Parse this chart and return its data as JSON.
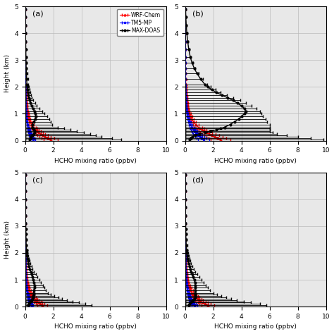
{
  "panels": [
    "(a)",
    "(b)",
    "(c)",
    "(d)"
  ],
  "heights": [
    0.05,
    0.1,
    0.15,
    0.2,
    0.25,
    0.3,
    0.35,
    0.4,
    0.45,
    0.5,
    0.6,
    0.7,
    0.8,
    0.9,
    1.0,
    1.1,
    1.2,
    1.3,
    1.4,
    1.5,
    1.6,
    1.7,
    1.8,
    1.9,
    2.0,
    2.1,
    2.3,
    2.5,
    2.7,
    2.9,
    3.1,
    3.4,
    3.7,
    4.0,
    4.3,
    4.6,
    4.9
  ],
  "max_doas": {
    "a": {
      "vals": [
        0.3,
        0.35,
        0.4,
        0.5,
        0.6,
        0.65,
        0.65,
        0.6,
        0.55,
        0.5,
        0.5,
        0.6,
        0.7,
        0.75,
        0.7,
        0.65,
        0.55,
        0.45,
        0.38,
        0.32,
        0.27,
        0.23,
        0.2,
        0.17,
        0.15,
        0.13,
        0.11,
        0.09,
        0.08,
        0.07,
        0.06,
        0.05,
        0.04,
        0.03,
        0.03,
        0.02,
        0.02
      ],
      "xerr_lo": [
        0.3,
        0.35,
        0.4,
        0.5,
        0.6,
        0.65,
        0.65,
        0.6,
        0.55,
        0.5,
        0.5,
        0.6,
        0.7,
        0.75,
        0.7,
        0.65,
        0.55,
        0.45,
        0.38,
        0.32,
        0.27,
        0.23,
        0.2,
        0.17,
        0.15,
        0.13,
        0.11,
        0.09,
        0.08,
        0.07,
        0.06,
        0.05,
        0.04,
        0.03,
        0.03,
        0.02,
        0.02
      ],
      "xerr_hi": [
        6.5,
        5.8,
        5.0,
        4.5,
        4.0,
        3.5,
        3.0,
        2.6,
        2.2,
        1.8,
        1.4,
        1.2,
        1.0,
        0.8,
        0.65,
        0.55,
        0.45,
        0.38,
        0.32,
        0.27,
        0.22,
        0.19,
        0.16,
        0.14,
        0.12,
        0.1,
        0.09,
        0.07,
        0.06,
        0.05,
        0.04,
        0.04,
        0.03,
        0.03,
        0.02,
        0.02,
        0.01
      ]
    },
    "b": {
      "vals": [
        0.3,
        0.4,
        0.5,
        0.7,
        1.0,
        1.4,
        1.8,
        2.2,
        2.5,
        2.8,
        3.2,
        3.5,
        3.8,
        4.0,
        4.2,
        4.3,
        4.2,
        4.0,
        3.7,
        3.4,
        3.0,
        2.6,
        2.2,
        1.9,
        1.6,
        1.4,
        1.1,
        0.85,
        0.65,
        0.5,
        0.38,
        0.27,
        0.19,
        0.13,
        0.09,
        0.06,
        0.04
      ],
      "xerr_lo": [
        0.3,
        0.4,
        0.5,
        0.7,
        1.0,
        1.4,
        1.8,
        2.2,
        2.5,
        2.8,
        3.2,
        3.5,
        3.8,
        4.0,
        4.2,
        4.3,
        4.2,
        4.0,
        3.7,
        3.4,
        3.0,
        2.6,
        2.2,
        1.9,
        1.6,
        1.4,
        1.1,
        0.85,
        0.65,
        0.5,
        0.38,
        0.27,
        0.19,
        0.13,
        0.09,
        0.06,
        0.04
      ],
      "xerr_hi": [
        9.5,
        8.5,
        7.5,
        6.5,
        5.5,
        4.8,
        4.2,
        3.8,
        3.5,
        3.2,
        2.8,
        2.3,
        1.9,
        1.5,
        1.2,
        1.0,
        0.85,
        0.7,
        0.6,
        0.5,
        0.4,
        0.35,
        0.3,
        0.25,
        0.22,
        0.19,
        0.15,
        0.12,
        0.09,
        0.07,
        0.05,
        0.04,
        0.03,
        0.02,
        0.02,
        0.01,
        0.01
      ]
    },
    "c": {
      "vals": [
        0.2,
        0.25,
        0.3,
        0.38,
        0.45,
        0.5,
        0.55,
        0.58,
        0.6,
        0.6,
        0.62,
        0.65,
        0.65,
        0.62,
        0.58,
        0.52,
        0.46,
        0.4,
        0.34,
        0.29,
        0.24,
        0.2,
        0.17,
        0.14,
        0.12,
        0.1,
        0.08,
        0.07,
        0.06,
        0.05,
        0.04,
        0.03,
        0.03,
        0.02,
        0.02,
        0.01,
        0.01
      ],
      "xerr_lo": [
        0.2,
        0.25,
        0.3,
        0.38,
        0.45,
        0.5,
        0.55,
        0.58,
        0.6,
        0.6,
        0.62,
        0.65,
        0.65,
        0.62,
        0.58,
        0.52,
        0.46,
        0.4,
        0.34,
        0.29,
        0.24,
        0.2,
        0.17,
        0.14,
        0.12,
        0.1,
        0.08,
        0.07,
        0.06,
        0.05,
        0.04,
        0.03,
        0.03,
        0.02,
        0.02,
        0.01,
        0.01
      ],
      "xerr_hi": [
        4.5,
        4.0,
        3.5,
        3.0,
        2.5,
        2.1,
        1.8,
        1.5,
        1.2,
        1.0,
        0.85,
        0.72,
        0.6,
        0.5,
        0.42,
        0.35,
        0.29,
        0.24,
        0.2,
        0.17,
        0.14,
        0.12,
        0.1,
        0.09,
        0.07,
        0.06,
        0.05,
        0.04,
        0.03,
        0.03,
        0.02,
        0.02,
        0.01,
        0.01,
        0.01,
        0.01,
        0.01
      ]
    },
    "d": {
      "vals": [
        0.25,
        0.3,
        0.38,
        0.48,
        0.58,
        0.65,
        0.7,
        0.72,
        0.72,
        0.7,
        0.7,
        0.72,
        0.72,
        0.7,
        0.65,
        0.58,
        0.5,
        0.43,
        0.37,
        0.31,
        0.26,
        0.22,
        0.18,
        0.15,
        0.13,
        0.11,
        0.09,
        0.07,
        0.06,
        0.05,
        0.04,
        0.03,
        0.03,
        0.02,
        0.02,
        0.01,
        0.01
      ],
      "xerr_lo": [
        0.25,
        0.3,
        0.38,
        0.48,
        0.58,
        0.65,
        0.7,
        0.72,
        0.72,
        0.7,
        0.7,
        0.72,
        0.72,
        0.7,
        0.65,
        0.58,
        0.5,
        0.43,
        0.37,
        0.31,
        0.26,
        0.22,
        0.18,
        0.15,
        0.13,
        0.11,
        0.09,
        0.07,
        0.06,
        0.05,
        0.04,
        0.03,
        0.03,
        0.02,
        0.02,
        0.01,
        0.01
      ],
      "xerr_hi": [
        5.5,
        5.0,
        4.3,
        3.7,
        3.1,
        2.6,
        2.2,
        1.85,
        1.55,
        1.3,
        1.05,
        0.88,
        0.73,
        0.6,
        0.5,
        0.42,
        0.35,
        0.29,
        0.24,
        0.2,
        0.17,
        0.14,
        0.12,
        0.1,
        0.08,
        0.07,
        0.06,
        0.05,
        0.04,
        0.03,
        0.03,
        0.02,
        0.02,
        0.01,
        0.01,
        0.01,
        0.01
      ]
    }
  },
  "wrf_chem": {
    "a": {
      "vals": [
        1.8,
        1.6,
        1.4,
        1.25,
        1.1,
        0.97,
        0.86,
        0.76,
        0.67,
        0.59,
        0.47,
        0.37,
        0.3,
        0.24,
        0.2,
        0.17,
        0.14,
        0.12,
        0.1,
        0.09,
        0.08,
        0.07,
        0.06,
        0.05,
        0.05,
        0.04,
        0.03,
        0.03,
        0.02,
        0.02,
        0.02,
        0.01,
        0.01,
        0.01,
        0.01,
        0.01,
        0.0
      ],
      "xerr": [
        0.5,
        0.45,
        0.4,
        0.36,
        0.32,
        0.28,
        0.25,
        0.22,
        0.19,
        0.17,
        0.14,
        0.11,
        0.09,
        0.07,
        0.06,
        0.05,
        0.04,
        0.04,
        0.03,
        0.03,
        0.02,
        0.02,
        0.02,
        0.01,
        0.01,
        0.01,
        0.01,
        0.01,
        0.01,
        0.01,
        0.01,
        0.01,
        0.0,
        0.0,
        0.0,
        0.0,
        0.0
      ]
    },
    "b": {
      "vals": [
        2.5,
        2.3,
        2.1,
        1.9,
        1.7,
        1.5,
        1.35,
        1.2,
        1.07,
        0.95,
        0.76,
        0.61,
        0.49,
        0.4,
        0.33,
        0.27,
        0.23,
        0.19,
        0.16,
        0.14,
        0.12,
        0.1,
        0.09,
        0.08,
        0.07,
        0.06,
        0.05,
        0.04,
        0.03,
        0.03,
        0.02,
        0.02,
        0.01,
        0.01,
        0.01,
        0.01,
        0.0
      ],
      "xerr": [
        0.7,
        0.63,
        0.57,
        0.51,
        0.46,
        0.41,
        0.37,
        0.33,
        0.29,
        0.26,
        0.2,
        0.16,
        0.13,
        0.1,
        0.08,
        0.07,
        0.06,
        0.05,
        0.04,
        0.04,
        0.03,
        0.03,
        0.02,
        0.02,
        0.02,
        0.01,
        0.01,
        0.01,
        0.01,
        0.01,
        0.01,
        0.01,
        0.0,
        0.0,
        0.0,
        0.0,
        0.0
      ]
    },
    "c": {
      "vals": [
        1.2,
        1.07,
        0.95,
        0.85,
        0.76,
        0.67,
        0.59,
        0.52,
        0.46,
        0.4,
        0.32,
        0.25,
        0.2,
        0.16,
        0.13,
        0.11,
        0.09,
        0.07,
        0.06,
        0.05,
        0.04,
        0.04,
        0.03,
        0.03,
        0.02,
        0.02,
        0.02,
        0.01,
        0.01,
        0.01,
        0.01,
        0.01,
        0.0,
        0.0,
        0.0,
        0.0,
        0.0
      ],
      "xerr": [
        0.35,
        0.31,
        0.28,
        0.25,
        0.22,
        0.19,
        0.17,
        0.15,
        0.13,
        0.12,
        0.09,
        0.07,
        0.06,
        0.05,
        0.04,
        0.03,
        0.03,
        0.02,
        0.02,
        0.02,
        0.01,
        0.01,
        0.01,
        0.01,
        0.01,
        0.01,
        0.01,
        0.0,
        0.0,
        0.0,
        0.0,
        0.0,
        0.0,
        0.0,
        0.0,
        0.0,
        0.0
      ]
    },
    "d": {
      "vals": [
        1.6,
        1.43,
        1.27,
        1.13,
        1.01,
        0.9,
        0.8,
        0.71,
        0.63,
        0.55,
        0.44,
        0.35,
        0.28,
        0.23,
        0.19,
        0.15,
        0.13,
        0.11,
        0.09,
        0.07,
        0.06,
        0.05,
        0.05,
        0.04,
        0.03,
        0.03,
        0.02,
        0.02,
        0.01,
        0.01,
        0.01,
        0.01,
        0.01,
        0.0,
        0.0,
        0.0,
        0.0
      ],
      "xerr": [
        0.45,
        0.4,
        0.36,
        0.32,
        0.28,
        0.25,
        0.22,
        0.2,
        0.17,
        0.15,
        0.12,
        0.1,
        0.08,
        0.06,
        0.05,
        0.04,
        0.04,
        0.03,
        0.02,
        0.02,
        0.02,
        0.01,
        0.01,
        0.01,
        0.01,
        0.01,
        0.01,
        0.01,
        0.0,
        0.0,
        0.0,
        0.0,
        0.0,
        0.0,
        0.0,
        0.0,
        0.0
      ]
    }
  },
  "tm5_mp": {
    "a": {
      "vals": [
        0.55,
        0.5,
        0.45,
        0.41,
        0.37,
        0.33,
        0.3,
        0.27,
        0.24,
        0.22,
        0.18,
        0.14,
        0.11,
        0.09,
        0.07,
        0.06,
        0.05,
        0.04,
        0.04,
        0.03,
        0.03,
        0.02,
        0.02,
        0.02,
        0.01,
        0.01,
        0.01,
        0.01,
        0.01,
        0.01,
        0.01,
        0.0,
        0.0,
        0.0,
        0.0,
        0.0,
        0.0
      ],
      "xerr": [
        0.18,
        0.16,
        0.14,
        0.13,
        0.11,
        0.1,
        0.09,
        0.08,
        0.07,
        0.06,
        0.05,
        0.04,
        0.03,
        0.03,
        0.02,
        0.02,
        0.01,
        0.01,
        0.01,
        0.01,
        0.01,
        0.01,
        0.01,
        0.01,
        0.01,
        0.01,
        0.0,
        0.0,
        0.0,
        0.0,
        0.0,
        0.0,
        0.0,
        0.0,
        0.0,
        0.0,
        0.0
      ]
    },
    "b": {
      "vals": [
        1.3,
        1.17,
        1.05,
        0.94,
        0.85,
        0.76,
        0.68,
        0.61,
        0.55,
        0.49,
        0.39,
        0.31,
        0.25,
        0.2,
        0.16,
        0.13,
        0.11,
        0.09,
        0.07,
        0.06,
        0.05,
        0.04,
        0.04,
        0.03,
        0.03,
        0.02,
        0.02,
        0.01,
        0.01,
        0.01,
        0.01,
        0.01,
        0.0,
        0.0,
        0.0,
        0.0,
        0.0
      ],
      "xerr": [
        0.4,
        0.36,
        0.32,
        0.29,
        0.26,
        0.23,
        0.21,
        0.18,
        0.16,
        0.15,
        0.12,
        0.09,
        0.07,
        0.06,
        0.05,
        0.04,
        0.03,
        0.03,
        0.02,
        0.02,
        0.02,
        0.01,
        0.01,
        0.01,
        0.01,
        0.01,
        0.01,
        0.0,
        0.0,
        0.0,
        0.0,
        0.0,
        0.0,
        0.0,
        0.0,
        0.0,
        0.0
      ]
    },
    "c": {
      "vals": [
        0.45,
        0.4,
        0.36,
        0.32,
        0.29,
        0.26,
        0.23,
        0.21,
        0.19,
        0.17,
        0.13,
        0.1,
        0.08,
        0.07,
        0.05,
        0.04,
        0.04,
        0.03,
        0.03,
        0.02,
        0.02,
        0.02,
        0.01,
        0.01,
        0.01,
        0.01,
        0.01,
        0.0,
        0.0,
        0.0,
        0.0,
        0.0,
        0.0,
        0.0,
        0.0,
        0.0,
        0.0
      ],
      "xerr": [
        0.14,
        0.12,
        0.11,
        0.1,
        0.09,
        0.08,
        0.07,
        0.06,
        0.06,
        0.05,
        0.04,
        0.03,
        0.02,
        0.02,
        0.02,
        0.01,
        0.01,
        0.01,
        0.01,
        0.01,
        0.01,
        0.01,
        0.0,
        0.0,
        0.0,
        0.0,
        0.0,
        0.0,
        0.0,
        0.0,
        0.0,
        0.0,
        0.0,
        0.0,
        0.0,
        0.0,
        0.0
      ]
    },
    "d": {
      "vals": [
        0.65,
        0.58,
        0.52,
        0.47,
        0.42,
        0.38,
        0.34,
        0.3,
        0.27,
        0.24,
        0.19,
        0.15,
        0.12,
        0.1,
        0.08,
        0.06,
        0.05,
        0.04,
        0.04,
        0.03,
        0.03,
        0.02,
        0.02,
        0.02,
        0.01,
        0.01,
        0.01,
        0.01,
        0.01,
        0.0,
        0.0,
        0.0,
        0.0,
        0.0,
        0.0,
        0.0,
        0.0
      ],
      "xerr": [
        0.2,
        0.18,
        0.16,
        0.14,
        0.13,
        0.11,
        0.1,
        0.09,
        0.08,
        0.07,
        0.06,
        0.04,
        0.04,
        0.03,
        0.02,
        0.02,
        0.02,
        0.01,
        0.01,
        0.01,
        0.01,
        0.01,
        0.01,
        0.01,
        0.0,
        0.0,
        0.0,
        0.0,
        0.0,
        0.0,
        0.0,
        0.0,
        0.0,
        0.0,
        0.0,
        0.0,
        0.0
      ]
    }
  },
  "xlim": [
    0,
    10
  ],
  "ylim": [
    0,
    5
  ],
  "xlabel": "HCHO mixing ratio (ppbv)",
  "ylabel": "Height (km)",
  "bg_color": "#e8e8e8",
  "grid_color": "#bbbbbb",
  "max_doas_color": "black",
  "wrf_chem_color": "red",
  "tm5_mp_color": "blue",
  "legend_labels": [
    "MAX-DOAS",
    "WRF-Chem",
    "TM5-MP"
  ]
}
